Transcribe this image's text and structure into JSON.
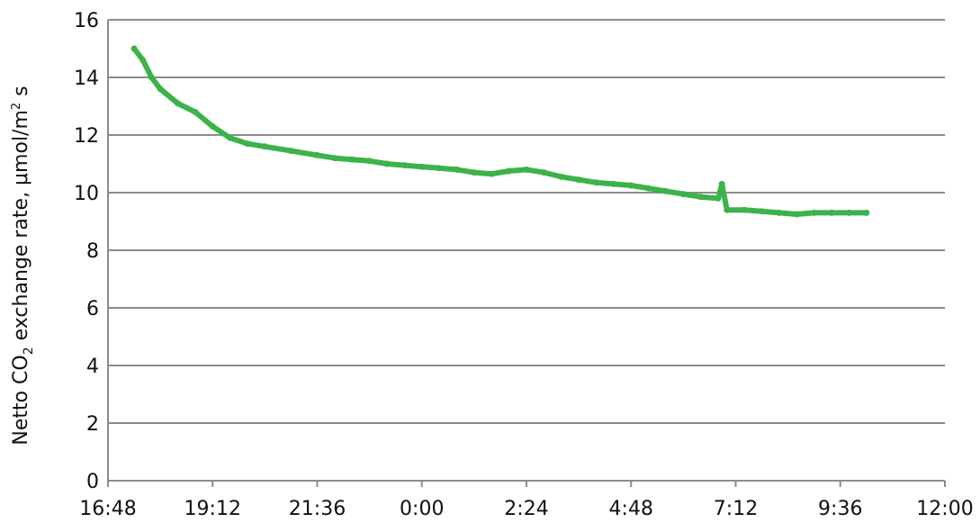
{
  "chart_data": {
    "type": "scatter",
    "title": "",
    "xlabel": "",
    "ylabel": {
      "prefix": "Netto CO",
      "co2_subscript": "2",
      "middle": " exchange rate, μmol/m",
      "superscript": "2",
      "suffix": " s"
    },
    "x_axis_type": "time-of-day",
    "xlim": [
      "16:48",
      "12:00"
    ],
    "x_tick_labels": [
      "16:48",
      "19:12",
      "21:36",
      "0:00",
      "2:24",
      "4:48",
      "7:12",
      "9:36",
      "12:00"
    ],
    "ylim": [
      0,
      16
    ],
    "y_tick_labels": [
      "0",
      "2",
      "4",
      "6",
      "8",
      "10",
      "12",
      "14",
      "16"
    ],
    "grid": true,
    "legend": "none",
    "series": [
      {
        "color": "#3cb34a",
        "x": [
          "17:24",
          "17:36",
          "17:48",
          "18:00",
          "18:24",
          "18:48",
          "19:12",
          "19:36",
          "20:00",
          "20:24",
          "21:00",
          "21:36",
          "22:00",
          "22:24",
          "22:48",
          "23:12",
          "23:36",
          "0:00",
          "0:24",
          "0:48",
          "1:12",
          "1:36",
          "2:00",
          "2:24",
          "2:48",
          "3:12",
          "3:36",
          "4:00",
          "4:24",
          "4:48",
          "5:12",
          "5:36",
          "6:00",
          "6:24",
          "6:48",
          "6:53",
          "7:00",
          "7:24",
          "7:48",
          "8:12",
          "8:36",
          "9:00",
          "9:24",
          "9:48",
          "10:12"
        ],
        "y": [
          15.0,
          14.6,
          14.0,
          13.6,
          13.1,
          12.8,
          12.3,
          11.9,
          11.7,
          11.6,
          11.45,
          11.3,
          11.2,
          11.15,
          11.1,
          11.0,
          10.95,
          10.9,
          10.85,
          10.8,
          10.7,
          10.65,
          10.75,
          10.8,
          10.7,
          10.55,
          10.45,
          10.35,
          10.3,
          10.25,
          10.15,
          10.05,
          9.95,
          9.85,
          9.8,
          10.3,
          9.4,
          9.4,
          9.35,
          9.3,
          9.25,
          9.3,
          9.3,
          9.3,
          9.3
        ]
      }
    ]
  }
}
